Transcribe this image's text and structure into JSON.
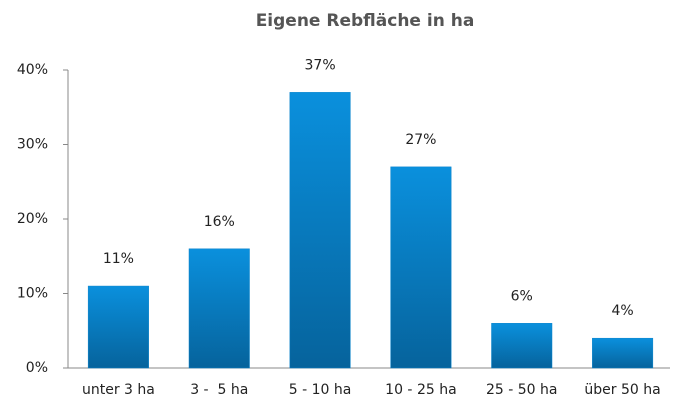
{
  "chart_data": {
    "type": "bar",
    "title": "Eigene Rebfläche in ha",
    "categories": [
      "unter 3 ha",
      "3 -  5 ha",
      "5 - 10 ha",
      "10 - 25 ha",
      "25 - 50 ha",
      "über 50 ha"
    ],
    "values": [
      11,
      16,
      37,
      27,
      6,
      4
    ],
    "value_labels": [
      "11%",
      "16%",
      "37%",
      "27%",
      "6%",
      "4%"
    ],
    "color": "#0a84cc",
    "ylim": [
      0,
      40
    ],
    "yticks": [
      {
        "value": 0,
        "label": "0%"
      },
      {
        "value": 10,
        "label": "10%"
      },
      {
        "value": 20,
        "label": "20%"
      },
      {
        "value": 30,
        "label": "30%"
      },
      {
        "value": 40,
        "label": "40%"
      }
    ],
    "grid": false
  }
}
